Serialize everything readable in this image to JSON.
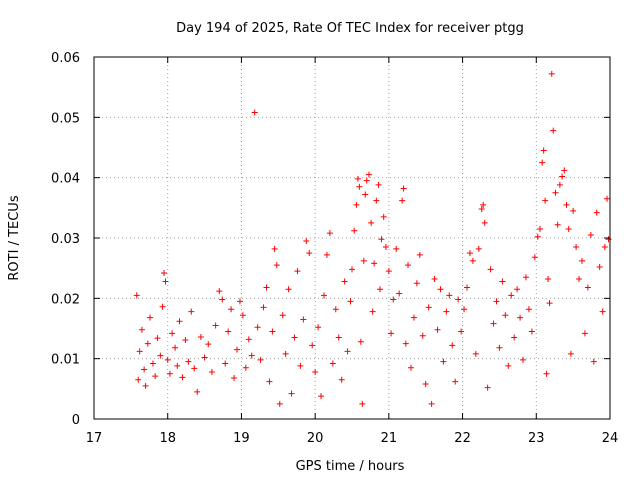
{
  "chart_data": {
    "type": "scatter",
    "title": "Day 194 of 2025, Rate Of TEC Index for receiver ptgg",
    "xlabel": "GPS time / hours",
    "ylabel": "ROTI / TECUs",
    "xlim": [
      17,
      24
    ],
    "ylim": [
      0,
      0.06
    ],
    "x_ticks": [
      17,
      18,
      19,
      20,
      21,
      22,
      23,
      24
    ],
    "x_tick_labels": [
      "17",
      "18",
      "19",
      "20",
      "21",
      "22",
      "23",
      "24"
    ],
    "y_ticks": [
      0,
      0.01,
      0.02,
      0.03,
      0.04,
      0.05,
      0.06
    ],
    "y_tick_labels": [
      "0",
      "0.01",
      "0.02",
      "0.03",
      "0.04",
      "0.05",
      "0.06"
    ],
    "grid": true,
    "marker": "plus",
    "color": "#ff0000",
    "series": [
      {
        "name": "ROTI",
        "points": [
          [
            17.58,
            0.0205
          ],
          [
            17.6,
            0.0065
          ],
          [
            17.62,
            0.0112
          ],
          [
            17.65,
            0.0148
          ],
          [
            17.68,
            0.0082
          ],
          [
            17.7,
            0.0055
          ],
          [
            17.73,
            0.0125
          ],
          [
            17.76,
            0.0168
          ],
          [
            17.8,
            0.0092
          ],
          [
            17.83,
            0.0071
          ],
          [
            17.86,
            0.0134
          ],
          [
            17.9,
            0.0105
          ],
          [
            17.93,
            0.0186
          ],
          [
            17.95,
            0.0242
          ],
          [
            17.97,
            0.0228
          ],
          [
            18.0,
            0.0098
          ],
          [
            18.03,
            0.0075
          ],
          [
            18.06,
            0.0142
          ],
          [
            18.1,
            0.0118
          ],
          [
            18.13,
            0.0088
          ],
          [
            18.16,
            0.0162
          ],
          [
            18.2,
            0.0069
          ],
          [
            18.24,
            0.0131
          ],
          [
            18.28,
            0.0095
          ],
          [
            18.32,
            0.0178
          ],
          [
            18.36,
            0.0084
          ],
          [
            18.4,
            0.0045
          ],
          [
            18.45,
            0.0136
          ],
          [
            18.5,
            0.0102
          ],
          [
            18.55,
            0.0124
          ],
          [
            18.6,
            0.0078
          ],
          [
            18.65,
            0.0155
          ],
          [
            18.7,
            0.0212
          ],
          [
            18.74,
            0.0198
          ],
          [
            18.78,
            0.0092
          ],
          [
            18.82,
            0.0145
          ],
          [
            18.86,
            0.0182
          ],
          [
            18.9,
            0.0068
          ],
          [
            18.94,
            0.0115
          ],
          [
            18.98,
            0.0195
          ],
          [
            19.02,
            0.0172
          ],
          [
            19.06,
            0.0085
          ],
          [
            19.1,
            0.0132
          ],
          [
            19.14,
            0.0105
          ],
          [
            19.18,
            0.0508
          ],
          [
            19.22,
            0.0152
          ],
          [
            19.26,
            0.0098
          ],
          [
            19.3,
            0.0185
          ],
          [
            19.34,
            0.0218
          ],
          [
            19.38,
            0.0062
          ],
          [
            19.42,
            0.0145
          ],
          [
            19.45,
            0.0282
          ],
          [
            19.48,
            0.0255
          ],
          [
            19.52,
            0.0025
          ],
          [
            19.56,
            0.0172
          ],
          [
            19.6,
            0.0108
          ],
          [
            19.64,
            0.0215
          ],
          [
            19.68,
            0.0042
          ],
          [
            19.72,
            0.0135
          ],
          [
            19.76,
            0.0245
          ],
          [
            19.8,
            0.0088
          ],
          [
            19.84,
            0.0165
          ],
          [
            19.88,
            0.0295
          ],
          [
            19.92,
            0.0275
          ],
          [
            19.96,
            0.0122
          ],
          [
            20.0,
            0.0078
          ],
          [
            20.04,
            0.0152
          ],
          [
            20.08,
            0.0038
          ],
          [
            20.12,
            0.0205
          ],
          [
            20.16,
            0.0272
          ],
          [
            20.2,
            0.0308
          ],
          [
            20.24,
            0.0092
          ],
          [
            20.28,
            0.0182
          ],
          [
            20.32,
            0.0135
          ],
          [
            20.36,
            0.0065
          ],
          [
            20.4,
            0.0228
          ],
          [
            20.44,
            0.0112
          ],
          [
            20.48,
            0.0195
          ],
          [
            20.5,
            0.0248
          ],
          [
            20.53,
            0.0312
          ],
          [
            20.56,
            0.0355
          ],
          [
            20.58,
            0.0398
          ],
          [
            20.6,
            0.0385
          ],
          [
            20.62,
            0.0128
          ],
          [
            20.64,
            0.0025
          ],
          [
            20.66,
            0.0262
          ],
          [
            20.68,
            0.0372
          ],
          [
            20.7,
            0.0395
          ],
          [
            20.73,
            0.0405
          ],
          [
            20.76,
            0.0325
          ],
          [
            20.78,
            0.0178
          ],
          [
            20.8,
            0.0258
          ],
          [
            20.83,
            0.0362
          ],
          [
            20.86,
            0.0388
          ],
          [
            20.88,
            0.0215
          ],
          [
            20.9,
            0.0298
          ],
          [
            20.93,
            0.0335
          ],
          [
            20.96,
            0.0285
          ],
          [
            21.0,
            0.0245
          ],
          [
            21.03,
            0.0142
          ],
          [
            21.06,
            0.0198
          ],
          [
            21.1,
            0.0282
          ],
          [
            21.14,
            0.0208
          ],
          [
            21.18,
            0.0362
          ],
          [
            21.2,
            0.0382
          ],
          [
            21.23,
            0.0125
          ],
          [
            21.26,
            0.0255
          ],
          [
            21.3,
            0.0085
          ],
          [
            21.34,
            0.0168
          ],
          [
            21.38,
            0.0225
          ],
          [
            21.42,
            0.0272
          ],
          [
            21.46,
            0.0138
          ],
          [
            21.5,
            0.0058
          ],
          [
            21.54,
            0.0185
          ],
          [
            21.58,
            0.0025
          ],
          [
            21.62,
            0.0232
          ],
          [
            21.66,
            0.0148
          ],
          [
            21.7,
            0.0215
          ],
          [
            21.74,
            0.0095
          ],
          [
            21.78,
            0.0178
          ],
          [
            21.82,
            0.0205
          ],
          [
            21.86,
            0.0122
          ],
          [
            21.9,
            0.0062
          ],
          [
            21.94,
            0.0198
          ],
          [
            21.98,
            0.0145
          ],
          [
            22.02,
            0.0182
          ],
          [
            22.06,
            0.0218
          ],
          [
            22.1,
            0.0275
          ],
          [
            22.14,
            0.0262
          ],
          [
            22.18,
            0.0108
          ],
          [
            22.22,
            0.0282
          ],
          [
            22.26,
            0.0348
          ],
          [
            22.28,
            0.0355
          ],
          [
            22.3,
            0.0325
          ],
          [
            22.34,
            0.0052
          ],
          [
            22.38,
            0.0248
          ],
          [
            22.42,
            0.0158
          ],
          [
            22.46,
            0.0195
          ],
          [
            22.5,
            0.0118
          ],
          [
            22.54,
            0.0228
          ],
          [
            22.58,
            0.0172
          ],
          [
            22.62,
            0.0088
          ],
          [
            22.66,
            0.0205
          ],
          [
            22.7,
            0.0135
          ],
          [
            22.74,
            0.0215
          ],
          [
            22.78,
            0.0168
          ],
          [
            22.82,
            0.0098
          ],
          [
            22.86,
            0.0235
          ],
          [
            22.9,
            0.0182
          ],
          [
            22.94,
            0.0145
          ],
          [
            22.98,
            0.0268
          ],
          [
            23.02,
            0.0302
          ],
          [
            23.05,
            0.0315
          ],
          [
            23.08,
            0.0425
          ],
          [
            23.1,
            0.0445
          ],
          [
            23.12,
            0.0362
          ],
          [
            23.14,
            0.0075
          ],
          [
            23.16,
            0.0232
          ],
          [
            23.18,
            0.0192
          ],
          [
            23.21,
            0.0572
          ],
          [
            23.23,
            0.0478
          ],
          [
            23.26,
            0.0375
          ],
          [
            23.29,
            0.0322
          ],
          [
            23.32,
            0.0388
          ],
          [
            23.35,
            0.0402
          ],
          [
            23.38,
            0.0412
          ],
          [
            23.41,
            0.0355
          ],
          [
            23.44,
            0.0315
          ],
          [
            23.47,
            0.0108
          ],
          [
            23.5,
            0.0345
          ],
          [
            23.54,
            0.0285
          ],
          [
            23.58,
            0.0232
          ],
          [
            23.62,
            0.0262
          ],
          [
            23.66,
            0.0142
          ],
          [
            23.7,
            0.0218
          ],
          [
            23.74,
            0.0305
          ],
          [
            23.78,
            0.0095
          ],
          [
            23.82,
            0.0342
          ],
          [
            23.86,
            0.0252
          ],
          [
            23.9,
            0.0178
          ],
          [
            23.93,
            0.0285
          ],
          [
            23.96,
            0.0365
          ],
          [
            23.98,
            0.0298
          ]
        ]
      }
    ]
  }
}
